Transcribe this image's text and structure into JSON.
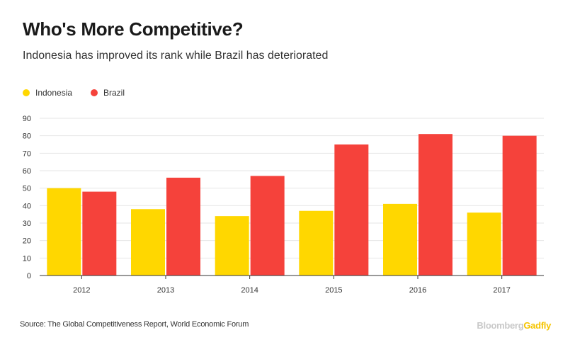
{
  "title": "Who's More Competitive?",
  "subtitle": "Indonesia has improved its rank while Brazil has deteriorated",
  "source": "Source: The Global Competitiveness Report, World Economic Forum",
  "brand": {
    "part1": "Bloomberg",
    "part2": "Gadfly"
  },
  "colors": {
    "indonesia": "#FFD700",
    "brazil": "#F5423B",
    "grid": "#e6e6e6",
    "axis": "#333333"
  },
  "chart_data": {
    "type": "bar",
    "title": "Who's More Competitive?",
    "subtitle": "Indonesia has improved its rank while Brazil has deteriorated",
    "categories": [
      "2012",
      "2013",
      "2014",
      "2015",
      "2016",
      "2017"
    ],
    "series": [
      {
        "name": "Indonesia",
        "color": "#FFD700",
        "values": [
          50,
          38,
          34,
          37,
          41,
          36
        ]
      },
      {
        "name": "Brazil",
        "color": "#F5423B",
        "values": [
          48,
          56,
          57,
          75,
          81,
          80
        ]
      }
    ],
    "ylim": [
      0,
      90
    ],
    "yticks": [
      "0",
      "10",
      "20",
      "30",
      "40",
      "50",
      "60",
      "70",
      "80",
      "90"
    ],
    "grid": true,
    "legend": "top-left"
  }
}
